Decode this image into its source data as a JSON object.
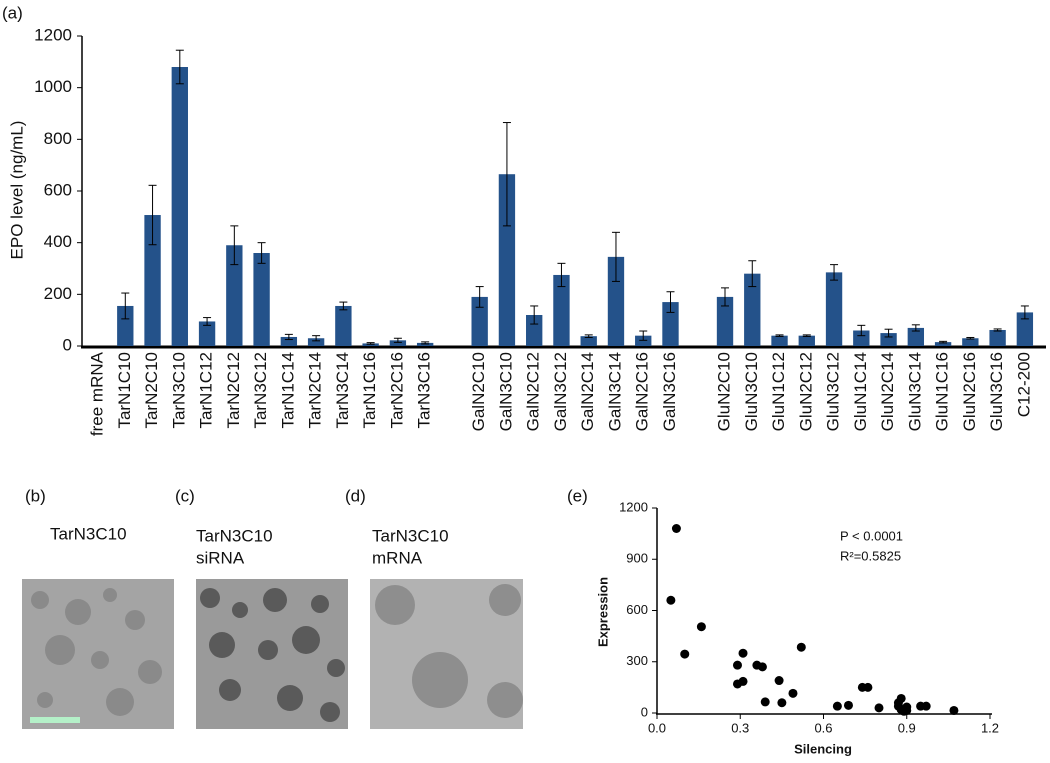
{
  "chart_data": [
    {
      "type": "bar",
      "panel_label": "(a)",
      "y_label": "EPO level (ng/mL)",
      "categories": [
        "free mRNA",
        "TarN1C10",
        "TarN2C10",
        "TarN3C10",
        "TarN1C12",
        "TarN2C12",
        "TarN3C12",
        "TarN1C14",
        "TarN2C14",
        "TarN3C14",
        "TarN1C16",
        "TarN2C16",
        "TarN3C16",
        null,
        "GalN2C10",
        "GalN3C10",
        "GalN2C12",
        "GalN3C12",
        "GalN2C14",
        "GalN3C14",
        "GalN2C16",
        "GalN3C16",
        null,
        "GluN2C10",
        "GluN3C10",
        "GluN1C12",
        "GluN2C12",
        "GluN3C12",
        "GluN1C14",
        "GluN2C14",
        "GluN3C14",
        "GluN1C16",
        "GluN2C16",
        "GluN3C16",
        "C12-200"
      ],
      "values": [
        0,
        155,
        507,
        1080,
        95,
        390,
        360,
        35,
        30,
        155,
        10,
        22,
        12,
        null,
        190,
        665,
        120,
        275,
        38,
        345,
        40,
        170,
        null,
        190,
        280,
        40,
        40,
        285,
        60,
        50,
        70,
        15,
        30,
        62,
        130
      ],
      "errors": [
        0,
        50,
        115,
        65,
        15,
        75,
        40,
        10,
        10,
        15,
        3,
        8,
        4,
        null,
        40,
        200,
        35,
        45,
        5,
        95,
        18,
        40,
        null,
        35,
        50,
        3,
        3,
        30,
        20,
        15,
        12,
        3,
        3,
        4,
        25
      ],
      "color": "#24528a",
      "ylim": [
        0,
        1200
      ],
      "yticks": [
        0,
        200,
        400,
        600,
        800,
        1000,
        1200
      ]
    },
    {
      "type": "scatter",
      "panel_label": "(e)",
      "x_label": "Silencing",
      "y_label": "Expression",
      "annotations": [
        "P < 0.0001",
        "R²=0.5825"
      ],
      "x": [
        0.07,
        0.05,
        0.1,
        0.16,
        0.29,
        0.31,
        0.29,
        0.31,
        0.36,
        0.38,
        0.39,
        0.44,
        0.45,
        0.49,
        0.52,
        0.65,
        0.69,
        0.74,
        0.76,
        0.8,
        0.87,
        0.88,
        0.88,
        0.89,
        0.9,
        0.95,
        0.97,
        1.07,
        0.87,
        0.9
      ],
      "values": [
        1080,
        660,
        345,
        505,
        280,
        350,
        170,
        185,
        280,
        270,
        65,
        190,
        60,
        115,
        385,
        40,
        45,
        150,
        150,
        30,
        40,
        85,
        20,
        10,
        35,
        40,
        40,
        15,
        60,
        15
      ],
      "color": "#000000",
      "xlim": [
        0,
        1.2
      ],
      "ylim": [
        0,
        1200
      ],
      "xticks": [
        {
          "value": 0,
          "label": "0.0"
        },
        0.3,
        0.6,
        0.9,
        1.2
      ],
      "yticks": [
        0,
        300,
        600,
        900,
        1200
      ]
    }
  ],
  "panels": [
    {
      "label": "(b)",
      "caption": [
        "TarN3C10"
      ]
    },
    {
      "label": "(c)",
      "caption": [
        "TarN3C10",
        "siRNA"
      ]
    },
    {
      "label": "(d)",
      "caption": [
        "TarN3C10",
        "mRNA"
      ]
    }
  ]
}
